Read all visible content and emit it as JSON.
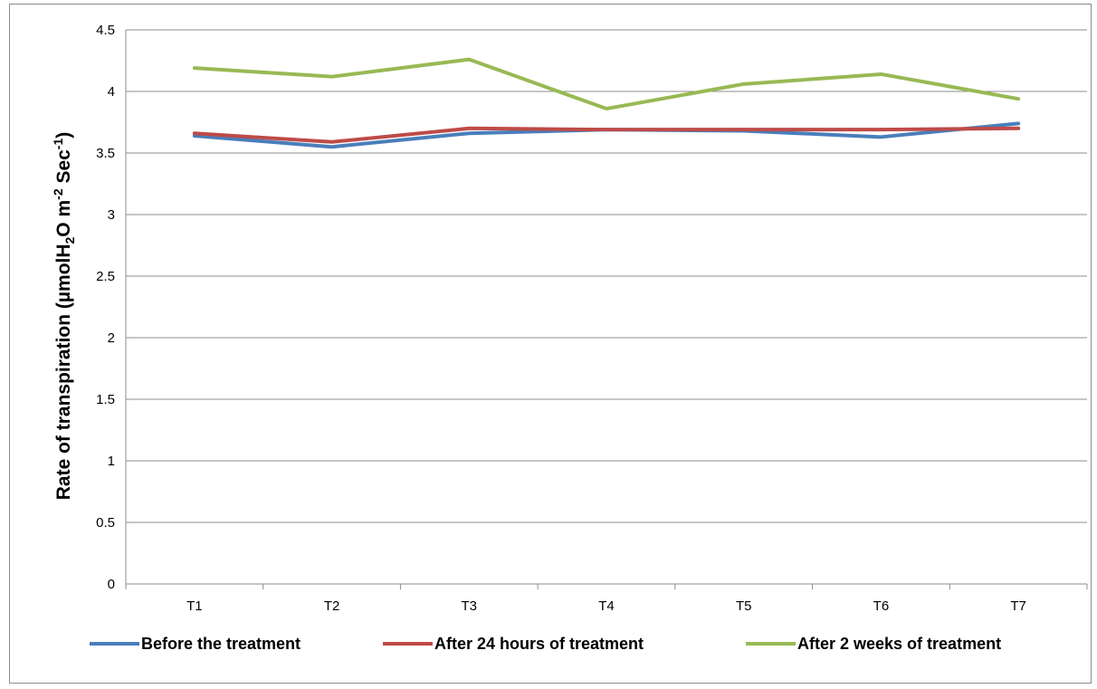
{
  "chart_data": {
    "type": "line",
    "title": "",
    "xlabel": "",
    "ylabel": {
      "main": "Rate of transpiration (µmolH",
      "sub1": "2",
      "mid1": "O m",
      "sup1": "-2",
      "mid2": " Sec",
      "sup2": "-1",
      "end": ")"
    },
    "categories": [
      "T1",
      "T2",
      "T3",
      "T4",
      "T5",
      "T6",
      "T7"
    ],
    "ylim": [
      0,
      4.5
    ],
    "yticks": [
      "0",
      "0.5",
      "1",
      "1.5",
      "2",
      "2.5",
      "3",
      "3.5",
      "4",
      "4.5"
    ],
    "grid": true,
    "legend_position": "bottom",
    "series": [
      {
        "name": "Before the treatment",
        "color": "#4a7ebb",
        "values": [
          3.64,
          3.55,
          3.66,
          3.69,
          3.68,
          3.63,
          3.74
        ]
      },
      {
        "name": "After 24 hours of treatment",
        "color": "#be4b48",
        "values": [
          3.66,
          3.59,
          3.7,
          3.69,
          3.69,
          3.69,
          3.7
        ]
      },
      {
        "name": "After 2 weeks of treatment",
        "color": "#98b954",
        "values": [
          4.19,
          4.12,
          4.26,
          3.86,
          4.06,
          4.14,
          3.94
        ]
      }
    ]
  }
}
